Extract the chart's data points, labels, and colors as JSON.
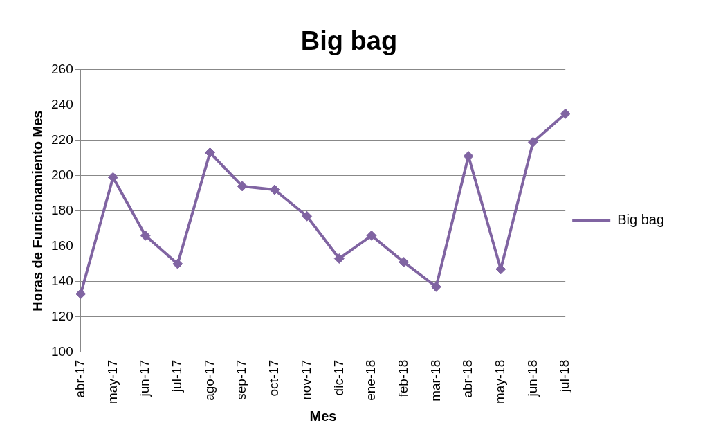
{
  "chart_data": {
    "type": "line",
    "title": "Big bag",
    "xlabel": "Mes",
    "ylabel": "Horas de Funcionamiento Mes",
    "categories": [
      "abr-17",
      "may-17",
      "jun-17",
      "jul-17",
      "ago-17",
      "sep-17",
      "oct-17",
      "nov-17",
      "dic-17",
      "ene-18",
      "feb-18",
      "mar-18",
      "abr-18",
      "may-18",
      "jun-18",
      "jul-18"
    ],
    "series": [
      {
        "name": "Big bag",
        "color": "#8064a2",
        "values": [
          133,
          199,
          166,
          150,
          213,
          194,
          192,
          177,
          153,
          166,
          151,
          137,
          211,
          147,
          219,
          235
        ]
      }
    ],
    "ylim": [
      100,
      260
    ],
    "yticks": [
      100,
      120,
      140,
      160,
      180,
      200,
      220,
      240,
      260
    ],
    "grid": "y",
    "legend": "right",
    "marker": "diamond",
    "line_style": "solid"
  }
}
